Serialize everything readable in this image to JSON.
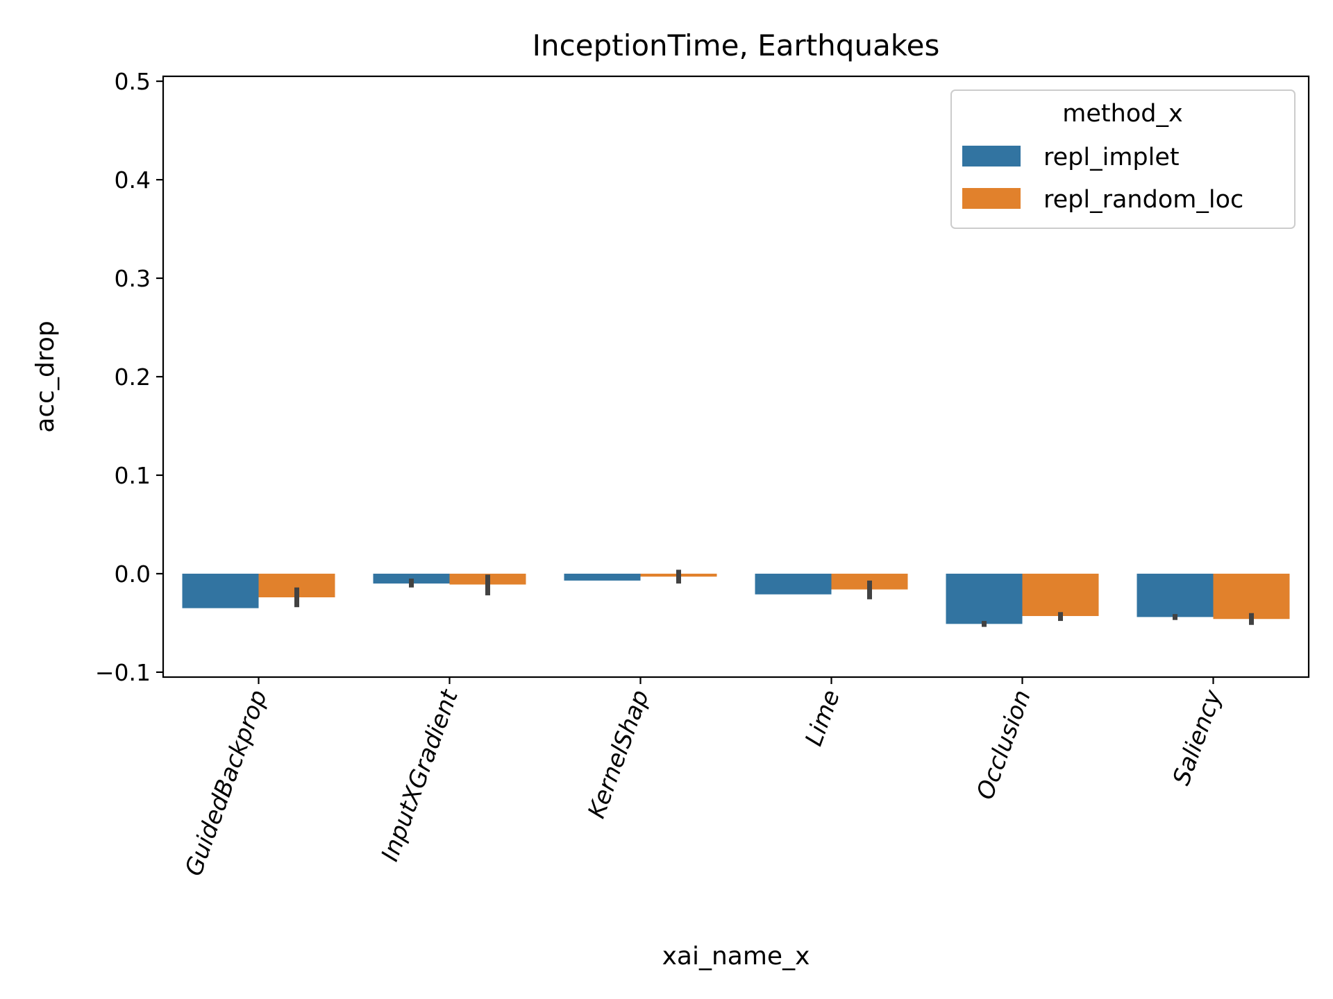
{
  "chart_data": {
    "type": "bar",
    "title": "InceptionTime, Earthquakes",
    "xlabel": "xai_name_x",
    "ylabel": "acc_drop",
    "ylim": [
      -0.105,
      0.505
    ],
    "yticks": [
      -0.1,
      0.0,
      0.1,
      0.2,
      0.3,
      0.4,
      0.5
    ],
    "ytick_labels": [
      "−0.1",
      "0.0",
      "0.1",
      "0.2",
      "0.3",
      "0.4",
      "0.5"
    ],
    "categories": [
      "GuidedBackprop",
      "InputXGradient",
      "KernelShap",
      "Lime",
      "Occlusion",
      "Saliency"
    ],
    "legend": {
      "title": "method_x",
      "position": "top-right"
    },
    "grid": false,
    "series": [
      {
        "name": "repl_implet",
        "color": "#3274a1",
        "values": [
          -0.035,
          -0.01,
          -0.007,
          -0.021,
          -0.051,
          -0.044
        ],
        "error_low": [
          -0.035,
          -0.014,
          -0.007,
          -0.021,
          -0.054,
          -0.047
        ],
        "error_high": [
          -0.035,
          -0.005,
          -0.007,
          -0.021,
          -0.048,
          -0.041
        ]
      },
      {
        "name": "repl_random_loc",
        "color": "#e1812c",
        "values": [
          -0.024,
          -0.011,
          -0.003,
          -0.016,
          -0.043,
          -0.046
        ],
        "error_low": [
          -0.034,
          -0.022,
          -0.01,
          -0.026,
          -0.048,
          -0.052
        ],
        "error_high": [
          -0.014,
          -0.001,
          0.004,
          -0.007,
          -0.039,
          -0.04
        ]
      }
    ]
  }
}
